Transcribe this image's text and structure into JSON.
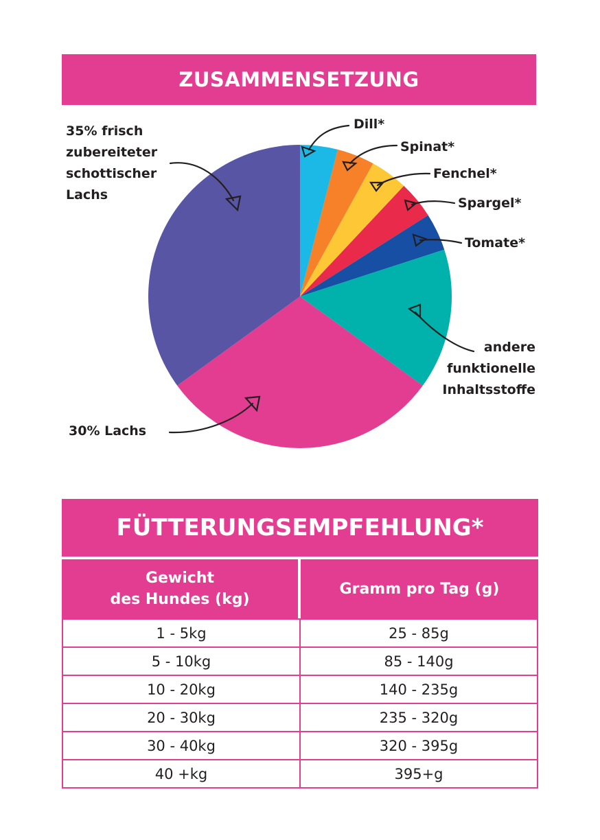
{
  "composition": {
    "title": "ZUSAMMENSETZUNG"
  },
  "chart_data": {
    "type": "pie",
    "title": "ZUSAMMENSETZUNG",
    "slices": [
      {
        "label": "Dill*",
        "value": 4,
        "color": "#1cb9e6"
      },
      {
        "label": "Spinat*",
        "value": 4,
        "color": "#f68129"
      },
      {
        "label": "Fenchel*",
        "value": 4,
        "color": "#fdc735"
      },
      {
        "label": "Spargel*",
        "value": 4,
        "color": "#ea2a4b"
      },
      {
        "label": "Tomate*",
        "value": 4,
        "color": "#174fa5"
      },
      {
        "label": "andere\nfunktionelle\nInhaltsstoffe",
        "value": 15,
        "color": "#00b2ab"
      },
      {
        "label": "30% Lachs",
        "value": 30,
        "color": "#e33d92"
      },
      {
        "label": "35% frisch\nzubereiteter\nschottischer\nLachs",
        "value": 35,
        "color": "#5955a5"
      }
    ]
  },
  "feeding": {
    "title": "FÜTTERUNGSEMPFEHLUNG*",
    "columns": [
      "Gewicht\ndes Hundes (kg)",
      "Gramm pro Tag (g)"
    ],
    "rows": [
      [
        "1 - 5kg",
        "25 - 85g"
      ],
      [
        "5 - 10kg",
        "85 - 140g"
      ],
      [
        "10 - 20kg",
        "140 - 235g"
      ],
      [
        "20 - 30kg",
        "235 - 320g"
      ],
      [
        "30 - 40kg",
        "320 - 395g"
      ],
      [
        "40 +kg",
        "395+g"
      ]
    ]
  }
}
